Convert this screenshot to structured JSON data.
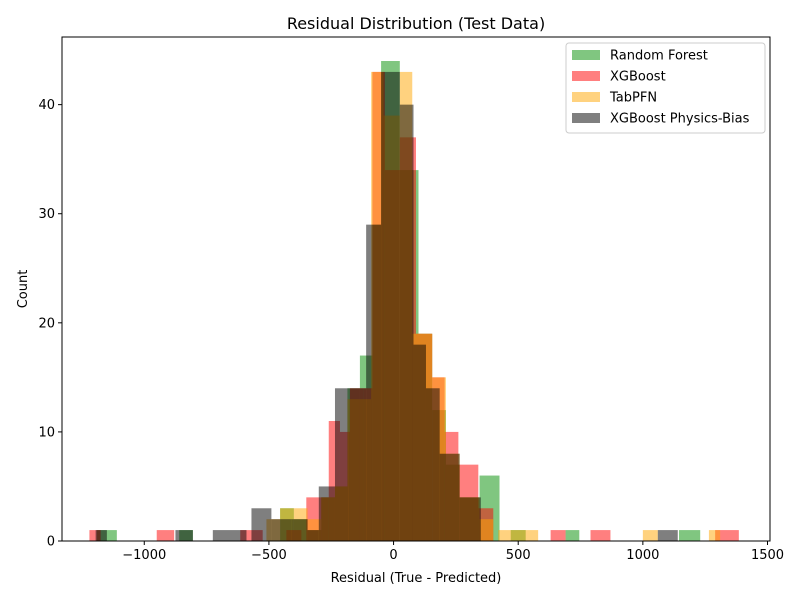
{
  "chart_data": {
    "type": "histogram",
    "title": "Residual Distribution (Test Data)",
    "xlabel": "Residual (True - Predicted)",
    "ylabel": "Count",
    "xlim": [
      -1330,
      1510
    ],
    "ylim": [
      0,
      46.2
    ],
    "xticks": [
      -1000,
      -500,
      0,
      500,
      1000,
      1500
    ],
    "xtick_labels": [
      "−1000",
      "−500",
      "0",
      "500",
      "1000",
      "1500"
    ],
    "yticks": [
      0,
      10,
      20,
      30,
      40
    ],
    "ytick_labels": [
      "0",
      "10",
      "20",
      "30",
      "40"
    ],
    "grid": false,
    "legend_position": "top-right",
    "series": [
      {
        "name": "Random Forest",
        "color": "#2ca02c",
        "alpha": 0.6,
        "bins": [
          [
            -1190,
            -1110,
            1
          ],
          [
            -860,
            -805,
            1
          ],
          [
            -455,
            -400,
            3
          ],
          [
            -400,
            -345,
            2
          ],
          [
            -345,
            -290,
            1
          ],
          [
            -290,
            -235,
            4
          ],
          [
            -235,
            -185,
            5
          ],
          [
            -185,
            -135,
            14
          ],
          [
            -135,
            -85,
            17
          ],
          [
            -85,
            -50,
            29
          ],
          [
            -50,
            25,
            44
          ],
          [
            25,
            100,
            34
          ],
          [
            100,
            155,
            19
          ],
          [
            155,
            210,
            12
          ],
          [
            210,
            265,
            7
          ],
          [
            265,
            345,
            4
          ],
          [
            345,
            425,
            6
          ],
          [
            470,
            530,
            1
          ],
          [
            690,
            745,
            1
          ],
          [
            1145,
            1230,
            1
          ]
        ]
      },
      {
        "name": "XGBoost",
        "color": "#ff0000",
        "alpha": 0.5,
        "bins": [
          [
            -1220,
            -1175,
            1
          ],
          [
            -950,
            -880,
            1
          ],
          [
            -615,
            -525,
            1
          ],
          [
            -430,
            -370,
            1
          ],
          [
            -350,
            -300,
            4
          ],
          [
            -300,
            -260,
            4
          ],
          [
            -260,
            -215,
            11
          ],
          [
            -215,
            -175,
            10
          ],
          [
            -175,
            -120,
            14
          ],
          [
            -120,
            -85,
            14
          ],
          [
            -85,
            -35,
            43
          ],
          [
            -35,
            25,
            34
          ],
          [
            25,
            90,
            37
          ],
          [
            90,
            155,
            19
          ],
          [
            155,
            205,
            15
          ],
          [
            205,
            260,
            10
          ],
          [
            260,
            340,
            7
          ],
          [
            340,
            400,
            3
          ],
          [
            630,
            690,
            1
          ],
          [
            790,
            870,
            1
          ],
          [
            1290,
            1385,
            1
          ]
        ]
      },
      {
        "name": "TabPFN",
        "color": "#ffa500",
        "alpha": 0.5,
        "bins": [
          [
            -510,
            -455,
            2
          ],
          [
            -455,
            -400,
            3
          ],
          [
            -400,
            -345,
            3
          ],
          [
            -345,
            -290,
            2
          ],
          [
            -290,
            -235,
            4
          ],
          [
            -235,
            -185,
            5
          ],
          [
            -185,
            -135,
            13
          ],
          [
            -135,
            -90,
            13
          ],
          [
            -90,
            -40,
            43
          ],
          [
            -40,
            25,
            39
          ],
          [
            25,
            75,
            43
          ],
          [
            75,
            155,
            19
          ],
          [
            155,
            210,
            15
          ],
          [
            210,
            265,
            8
          ],
          [
            265,
            345,
            4
          ],
          [
            345,
            400,
            2
          ],
          [
            420,
            515,
            1
          ],
          [
            515,
            580,
            1
          ],
          [
            1000,
            1060,
            1
          ],
          [
            1265,
            1310,
            1
          ]
        ]
      },
      {
        "name": "XGBoost Physics-Bias",
        "color": "#000000",
        "alpha": 0.5,
        "bins": [
          [
            -1195,
            -1150,
            1
          ],
          [
            -875,
            -805,
            1
          ],
          [
            -725,
            -590,
            1
          ],
          [
            -570,
            -490,
            3
          ],
          [
            -490,
            -410,
            2
          ],
          [
            -410,
            -345,
            2
          ],
          [
            -345,
            -300,
            1
          ],
          [
            -300,
            -235,
            5
          ],
          [
            -235,
            -180,
            14
          ],
          [
            -180,
            -110,
            14
          ],
          [
            -110,
            -50,
            29
          ],
          [
            -50,
            25,
            43
          ],
          [
            25,
            80,
            40
          ],
          [
            80,
            130,
            18
          ],
          [
            130,
            185,
            14
          ],
          [
            185,
            265,
            8
          ],
          [
            265,
            350,
            4
          ],
          [
            1060,
            1140,
            1
          ]
        ]
      }
    ]
  }
}
